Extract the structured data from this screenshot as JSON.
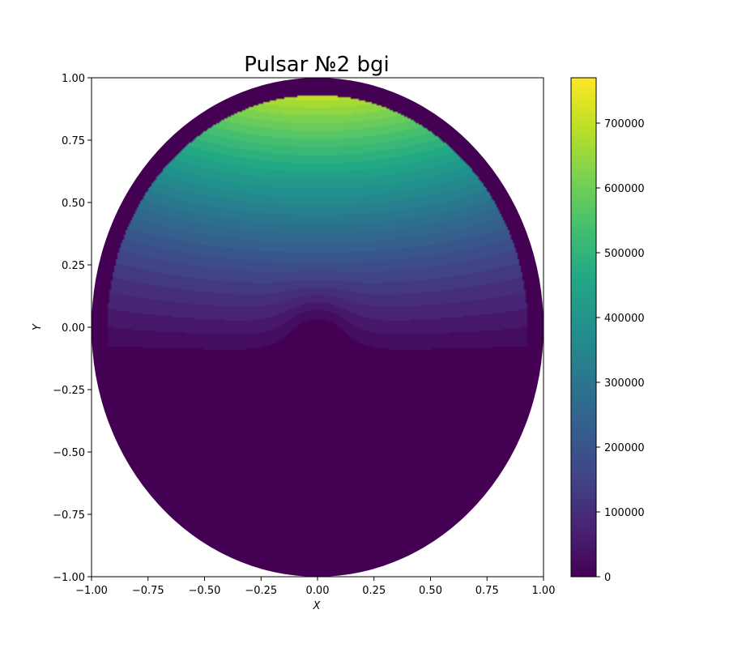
{
  "chart_data": {
    "type": "heatmap",
    "title": "Pulsar №2 bgi",
    "xlabel": "X",
    "ylabel": "Y",
    "xlim": [
      -1.0,
      1.0
    ],
    "ylim": [
      -1.0,
      1.0
    ],
    "x_ticks": [
      "−1.00",
      "−0.75",
      "−0.50",
      "−0.25",
      "0.00",
      "0.25",
      "0.50",
      "0.75",
      "1.00"
    ],
    "y_ticks": [
      "−1.00",
      "−0.75",
      "−0.50",
      "−0.25",
      "0.00",
      "0.25",
      "0.50",
      "0.75",
      "1.00"
    ],
    "x_tick_values": [
      -1.0,
      -0.75,
      -0.5,
      -0.25,
      0.0,
      0.25,
      0.5,
      0.75,
      1.0
    ],
    "y_tick_values": [
      -1.0,
      -0.75,
      -0.5,
      -0.25,
      0.0,
      0.25,
      0.5,
      0.75,
      1.0
    ],
    "colormap": "viridis",
    "colorbar": {
      "min": 0,
      "max": 770000,
      "tick_values": [
        0,
        100000,
        200000,
        300000,
        400000,
        500000,
        600000,
        700000
      ],
      "tick_labels": [
        "0",
        "100000",
        "200000",
        "300000",
        "400000",
        "500000",
        "600000",
        "700000"
      ]
    },
    "field": {
      "domain": "unit disk",
      "zero_region": "y < -0.15",
      "value_at_top": 770000,
      "local_minimum_at": [
        0.0,
        0.0
      ]
    },
    "grid": false
  }
}
